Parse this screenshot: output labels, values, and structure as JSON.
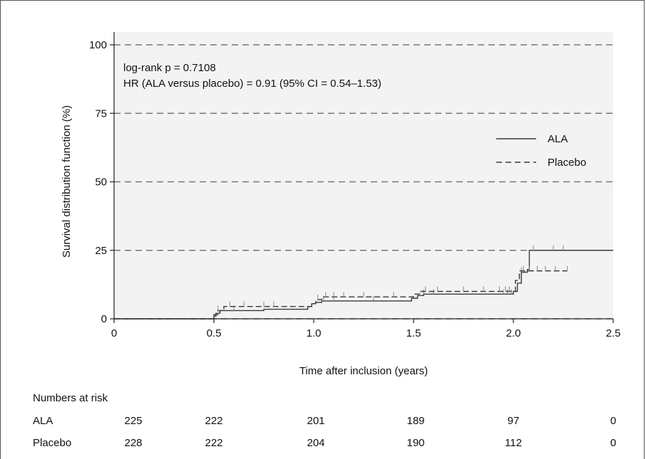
{
  "chart_data": {
    "type": "line",
    "subtype": "kaplan-meier",
    "ylabel": "Survival distribution function (%)",
    "xlabel": "Time after inclusion (years)",
    "xlim": [
      0,
      2.5
    ],
    "ylim": [
      0,
      100
    ],
    "x_ticks": [
      "0",
      "0.5",
      "1.0",
      "1.5",
      "2.0",
      "2.5"
    ],
    "x_tick_values": [
      0,
      0.5,
      1.0,
      1.5,
      2.0,
      2.5
    ],
    "y_ticks": [
      "0",
      "25",
      "50",
      "75",
      "100"
    ],
    "y_tick_values": [
      0,
      25,
      50,
      75,
      100
    ],
    "grid": "dashed horizontal",
    "annotations": [
      "log-rank p = 0.7108",
      "HR (ALA versus placebo) = 0.91 (95% CI = 0.54–1.53)"
    ],
    "legend_placement": "right",
    "series": [
      {
        "name": "ALA",
        "style": "solid",
        "steps": [
          [
            0,
            0
          ],
          [
            0.49,
            0
          ],
          [
            0.5,
            1
          ],
          [
            0.51,
            2
          ],
          [
            0.53,
            3
          ],
          [
            0.74,
            3
          ],
          [
            0.75,
            3.5
          ],
          [
            0.96,
            3.5
          ],
          [
            0.97,
            4.5
          ],
          [
            0.99,
            5.5
          ],
          [
            1.01,
            6
          ],
          [
            1.04,
            6.5
          ],
          [
            1.47,
            6.5
          ],
          [
            1.49,
            7.5
          ],
          [
            1.52,
            8.5
          ],
          [
            1.55,
            9
          ],
          [
            1.99,
            9
          ],
          [
            2.0,
            10
          ],
          [
            2.02,
            13
          ],
          [
            2.04,
            17
          ],
          [
            2.07,
            18
          ],
          [
            2.08,
            25
          ],
          [
            2.5,
            25
          ]
        ],
        "censor_x": [
          0.55,
          0.6,
          1.05,
          1.1,
          1.3,
          1.55,
          1.6,
          1.95,
          1.97,
          1.99,
          2.04,
          2.1,
          2.2,
          2.25
        ]
      },
      {
        "name": "Placebo",
        "style": "dashed",
        "steps": [
          [
            0,
            0
          ],
          [
            0.49,
            0
          ],
          [
            0.5,
            1.5
          ],
          [
            0.52,
            3
          ],
          [
            0.55,
            4.5
          ],
          [
            0.97,
            4.5
          ],
          [
            0.99,
            5.5
          ],
          [
            1.01,
            7
          ],
          [
            1.04,
            8
          ],
          [
            1.47,
            8
          ],
          [
            1.5,
            9
          ],
          [
            1.53,
            10
          ],
          [
            1.99,
            10
          ],
          [
            2.01,
            14
          ],
          [
            2.03,
            17.5
          ],
          [
            2.27,
            17.5
          ]
        ],
        "censor_x": [
          0.52,
          0.58,
          0.65,
          0.75,
          0.8,
          1.02,
          1.06,
          1.1,
          1.15,
          1.25,
          1.4,
          1.56,
          1.62,
          1.75,
          1.85,
          1.93,
          1.96,
          1.98,
          2.05,
          2.08,
          2.12,
          2.16,
          2.21,
          2.27
        ]
      }
    ]
  },
  "risk_table": {
    "title": "Numbers at risk",
    "rows": [
      {
        "label": "ALA",
        "values": [
          "225",
          "222",
          "201",
          "189",
          "97",
          "0"
        ]
      },
      {
        "label": "Placebo",
        "values": [
          "228",
          "222",
          "204",
          "190",
          "112",
          "0"
        ]
      }
    ]
  },
  "colors": {
    "plot_bg": "#f3f3f3",
    "line": "#3a3a3a",
    "grid": "#777777"
  }
}
